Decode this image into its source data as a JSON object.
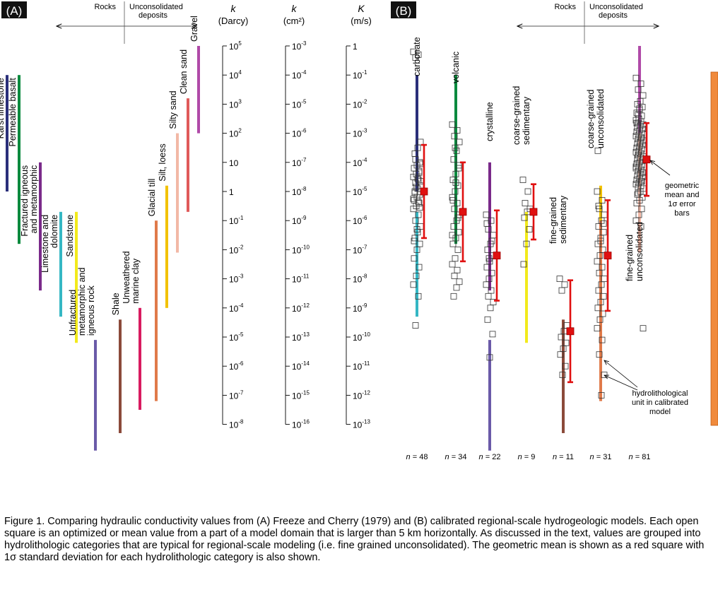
{
  "figure": {
    "caption": "Figure 1. Comparing hydraulic conductivity values from (A)  Freeze and Cherry (1979) and (B) calibrated regional-scale hydrogeologic models.  Each open square is an optimized or mean value from a part of a model domain that is larger than 5 km horizontally.  As discussed in the text, values are grouped into hydrolithologic categories that are typical for regional-scale modeling (i.e. fine grained unconsolidated). The geometric mean is shown as a red square with 1σ standard deviation for each hydrolithologic category is also shown."
  },
  "chart_data": [
    {
      "panel": "(A)",
      "type": "range-bars",
      "header": {
        "left": "Rocks",
        "right": "Unconsolidated deposits"
      },
      "axes": [
        {
          "symbol": "k",
          "unit": "(Darcy)",
          "min_exp": -8,
          "max_exp": 5,
          "ticks": [
            {
              "base": "10",
              "exp": "5"
            },
            {
              "base": "10",
              "exp": "4"
            },
            {
              "base": "10",
              "exp": "3"
            },
            {
              "base": "10",
              "exp": "2"
            },
            {
              "base": "10",
              "exp": ""
            },
            {
              "base": "1",
              "exp": ""
            },
            {
              "base": "10",
              "exp": "-1"
            },
            {
              "base": "10",
              "exp": "-2"
            },
            {
              "base": "10",
              "exp": "-3"
            },
            {
              "base": "10",
              "exp": "-4"
            },
            {
              "base": "10",
              "exp": "-5"
            },
            {
              "base": "10",
              "exp": "-6"
            },
            {
              "base": "10",
              "exp": "-7"
            },
            {
              "base": "10",
              "exp": "-8"
            }
          ]
        },
        {
          "symbol": "k",
          "unit": "(cm²)",
          "min_exp": -16,
          "max_exp": -3,
          "ticks": [
            {
              "base": "10",
              "exp": "-3"
            },
            {
              "base": "10",
              "exp": "-4"
            },
            {
              "base": "10",
              "exp": "-5"
            },
            {
              "base": "10",
              "exp": "-6"
            },
            {
              "base": "10",
              "exp": "-7"
            },
            {
              "base": "10",
              "exp": "-8"
            },
            {
              "base": "10",
              "exp": "-9"
            },
            {
              "base": "10",
              "exp": "-10"
            },
            {
              "base": "10",
              "exp": "-11"
            },
            {
              "base": "10",
              "exp": "-12"
            },
            {
              "base": "10",
              "exp": "-13"
            },
            {
              "base": "10",
              "exp": "-14"
            },
            {
              "base": "10",
              "exp": "-15"
            },
            {
              "base": "10",
              "exp": "-16"
            }
          ]
        },
        {
          "symbol": "K",
          "unit": "(m/s)",
          "min_exp": -13,
          "max_exp": 0,
          "ticks": [
            {
              "base": "1",
              "exp": ""
            },
            {
              "base": "10",
              "exp": "-1"
            },
            {
              "base": "10",
              "exp": "-2"
            },
            {
              "base": "10",
              "exp": "-3"
            },
            {
              "base": "10",
              "exp": "-4"
            },
            {
              "base": "10",
              "exp": "-5"
            },
            {
              "base": "10",
              "exp": "-6"
            },
            {
              "base": "10",
              "exp": "-7"
            },
            {
              "base": "10",
              "exp": "-8"
            },
            {
              "base": "10",
              "exp": "-9"
            },
            {
              "base": "10",
              "exp": "-10"
            },
            {
              "base": "10",
              "exp": "-11"
            },
            {
              "base": "10",
              "exp": "-12"
            },
            {
              "base": "10",
              "exp": "-13"
            }
          ]
        }
      ],
      "ranges_log10_K_m_s": [
        {
          "lines": [
            "Karst limestone"
          ],
          "min": -5.0,
          "max": -1.0,
          "color": "#2a2f7a"
        },
        {
          "lines": [
            "Permeable basalt"
          ],
          "min": -6.8,
          "max": -1.0,
          "color": "#0b8a3e"
        },
        {
          "lines": [
            "Fractured igneous",
            "and metamorphic"
          ],
          "min": -8.4,
          "max": -4.0,
          "color": "#7a2a8a"
        },
        {
          "lines": [
            "Limestone and",
            "dolomite"
          ],
          "min": -9.3,
          "max": -5.7,
          "color": "#35b7c4"
        },
        {
          "lines": [
            "Sandstone"
          ],
          "min": -10.2,
          "max": -5.7,
          "color": "#f2ea1c"
        },
        {
          "lines": [
            "Unfractured",
            "metamorphic and",
            "igneous rock"
          ],
          "min": -13.9,
          "max": -10.1,
          "color": "#6a5aa8"
        },
        {
          "lines": [
            "Shale"
          ],
          "min": -13.3,
          "max": -9.4,
          "color": "#8b4a3a"
        },
        {
          "lines": [
            "Unweathered",
            "marine clay"
          ],
          "min": -12.5,
          "max": -9.0,
          "color": "#d81b60"
        },
        {
          "lines": [
            "Glacial till"
          ],
          "min": -12.2,
          "max": -6.0,
          "color": "#e07a4a"
        },
        {
          "lines": [
            "Silt, loess"
          ],
          "min": -9.0,
          "max": -4.8,
          "color": "#f2c200"
        },
        {
          "lines": [
            "Silty sand"
          ],
          "min": -7.1,
          "max": -3.0,
          "color": "#f2b8a6"
        },
        {
          "lines": [
            "Clean sand"
          ],
          "min": -5.7,
          "max": -1.8,
          "color": "#e05a5a"
        },
        {
          "lines": [
            "Gravel"
          ],
          "min": -3.0,
          "max": 0.0,
          "color": "#b04aa8"
        }
      ]
    },
    {
      "panel": "(B)",
      "type": "scatter",
      "header": {
        "left": "Rocks",
        "right": "Unconsolidated deposits"
      },
      "range_bar_note": "coloured bars repeat the panel (A) ranges; orange bar spans -13 to 0 (all values)",
      "annotations": {
        "mean": [
          "geometric",
          "mean and",
          "1σ error",
          "bars"
        ],
        "unit": [
          "hydrolithological",
          "unit in calibrated",
          "model"
        ]
      },
      "categories": [
        {
          "label": [
            "carbonate"
          ],
          "n_label": "48",
          "n": "n",
          "mean": -5.0,
          "sigma": 1.6,
          "ranges": [
            [
              "#2a2f7a",
              -5.0,
              -1.0
            ],
            [
              "#35b7c4",
              -9.3,
              -5.7
            ]
          ],
          "points": [
            -0.2,
            -0.3,
            -0.4,
            -3.3,
            -3.5,
            -3.7,
            -4.0,
            -4.1,
            -4.2,
            -4.3,
            -4.4,
            -4.5,
            -4.6,
            -4.7,
            -4.8,
            -4.9,
            -5.0,
            -5.1,
            -5.2,
            -5.3,
            -5.4,
            -5.5,
            -5.6,
            -5.8,
            -6.0,
            -6.2,
            -6.4,
            -6.6,
            -6.8,
            -7.0,
            -7.3,
            -7.6,
            -7.9,
            -8.2,
            -8.6,
            -9.6,
            -4.05,
            -4.55,
            -5.05,
            -5.55,
            -6.3,
            -6.7,
            -4.35,
            -4.85,
            -5.25,
            -5.35,
            -3.9,
            -4.65
          ]
        },
        {
          "label": [
            "volcanic"
          ],
          "n_label": "34",
          "n": "n",
          "mean": -5.7,
          "sigma": 1.7,
          "ranges": [
            [
              "#0b8a3e",
              -6.8,
              -1.0
            ]
          ],
          "points": [
            -2.7,
            -2.9,
            -3.1,
            -3.3,
            -3.6,
            -3.9,
            -4.2,
            -4.4,
            -4.6,
            -4.8,
            -5.0,
            -5.2,
            -5.4,
            -5.6,
            -5.8,
            -6.0,
            -6.2,
            -6.4,
            -6.6,
            -6.8,
            -7.0,
            -7.3,
            -7.5,
            -7.7,
            -7.9,
            -8.1,
            -8.3,
            -8.6,
            -4.1,
            -4.7,
            -5.3,
            -5.9,
            -3.5,
            -6.5
          ]
        },
        {
          "label": [
            "crystalline"
          ],
          "n_label": "22",
          "n": "n",
          "mean": -7.2,
          "sigma": 1.55,
          "ranges": [
            [
              "#7a2a8a",
              -8.4,
              -4.0
            ],
            [
              "#6a5aa8",
              -13.9,
              -10.1
            ]
          ],
          "points": [
            -5.8,
            -6.0,
            -6.3,
            -6.5,
            -6.8,
            -7.0,
            -7.2,
            -7.4,
            -7.6,
            -7.8,
            -8.0,
            -8.2,
            -8.4,
            -8.6,
            -8.8,
            -9.0,
            -9.4,
            -9.9,
            -10.7,
            -6.1,
            -6.7,
            -7.3
          ]
        },
        {
          "label": [
            "coarse-grained",
            "sedimentary"
          ],
          "n_label": "9",
          "n": "n",
          "mean": -5.7,
          "sigma": 0.95,
          "ranges": [
            [
              "#f2ea1c",
              -10.2,
              -5.7
            ]
          ],
          "points": [
            -4.6,
            -5.0,
            -5.4,
            -5.6,
            -5.7,
            -5.9,
            -6.3,
            -6.8,
            -7.5
          ]
        },
        {
          "label": [
            "fine-grained",
            "sedimentary"
          ],
          "n_label": "11",
          "n": "n",
          "mean": -9.8,
          "sigma": 1.75,
          "ranges": [
            [
              "#8b4a3a",
              -13.3,
              -9.4
            ]
          ],
          "points": [
            -8.0,
            -8.2,
            -8.4,
            -9.6,
            -9.8,
            -10.0,
            -10.2,
            -10.4,
            -10.6,
            -11.0,
            -11.3
          ]
        },
        {
          "label": [
            "coarse-grained",
            "unconsolidated"
          ],
          "n_label": "31",
          "n": "n",
          "mean": -7.2,
          "sigma": 1.9,
          "ranges": [
            [
              "#f2c200",
              -9.0,
              -4.8
            ],
            [
              "#e07a4a",
              -12.2,
              -6.0
            ]
          ],
          "points": [
            -5.0,
            -5.3,
            -5.6,
            -5.8,
            -6.0,
            -6.2,
            -6.4,
            -6.6,
            -6.8,
            -7.0,
            -7.2,
            -7.4,
            -7.6,
            -7.8,
            -8.0,
            -8.2,
            -8.4,
            -8.6,
            -8.8,
            -9.0,
            -9.2,
            -9.4,
            -9.7,
            -10.1,
            -10.6,
            -11.3,
            -12.0,
            -5.5,
            -6.1,
            -6.7,
            -3.6
          ]
        },
        {
          "label": [
            "fine-grained",
            "unconsolidated"
          ],
          "n_label": "81",
          "n": "n",
          "mean": -3.9,
          "sigma": 1.25,
          "ranges": [
            [
              "#f2b8a6",
              -7.1,
              -3.0
            ],
            [
              "#b04aa8",
              -3.0,
              0.0
            ]
          ],
          "points": [
            -1.1,
            -1.3,
            -1.5,
            -1.7,
            -1.9,
            -2.0,
            -2.1,
            -2.2,
            -2.3,
            -2.4,
            -2.5,
            -2.55,
            -2.6,
            -2.65,
            -2.7,
            -2.75,
            -2.8,
            -2.85,
            -2.9,
            -2.95,
            -3.0,
            -3.05,
            -3.1,
            -3.15,
            -3.2,
            -3.25,
            -3.3,
            -3.35,
            -3.4,
            -3.45,
            -3.5,
            -3.55,
            -3.6,
            -3.65,
            -3.7,
            -3.75,
            -3.8,
            -3.85,
            -3.9,
            -3.95,
            -4.0,
            -4.05,
            -4.1,
            -4.15,
            -4.2,
            -4.25,
            -4.3,
            -4.35,
            -4.4,
            -4.45,
            -4.5,
            -4.55,
            -4.6,
            -4.65,
            -4.7,
            -4.75,
            -4.8,
            -4.85,
            -4.9,
            -5.0,
            -5.1,
            -5.2,
            -5.3,
            -5.4,
            -5.6,
            -5.8,
            -6.0,
            -6.2,
            -2.35,
            -2.85,
            -3.35,
            -3.85,
            -4.35,
            -2.15,
            -2.65,
            -3.15,
            -3.65,
            -4.15,
            -4.65,
            -5.05,
            -9.7
          ]
        }
      ]
    }
  ]
}
